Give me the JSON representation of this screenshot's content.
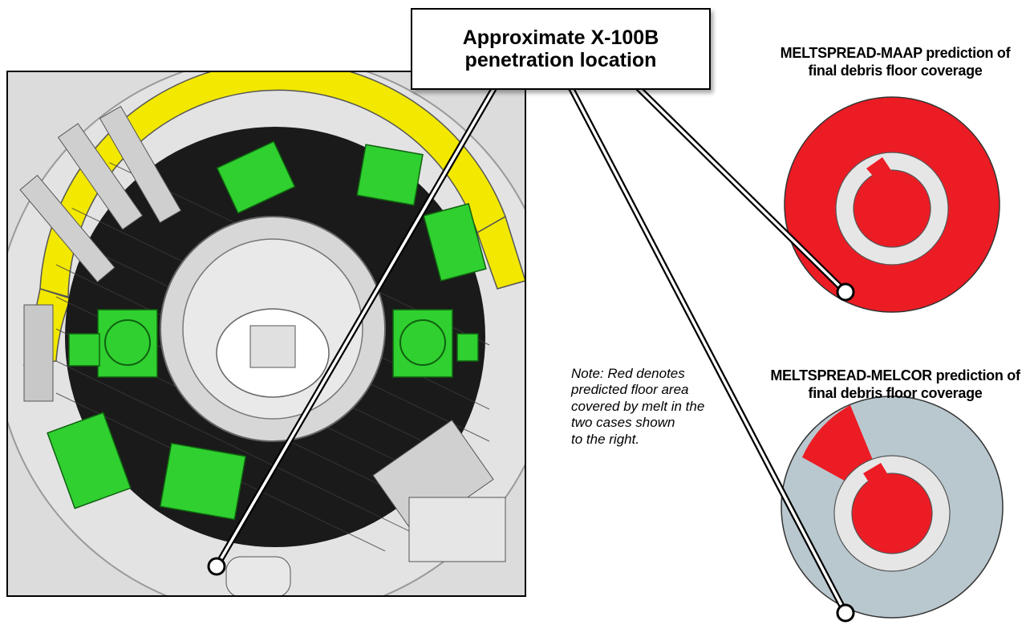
{
  "callout": {
    "line1": "Approximate X-100B",
    "line2": "penetration location"
  },
  "maap_caption": {
    "line1": "MELTSPREAD-MAAP prediction of",
    "line2": "final debris floor coverage"
  },
  "melcor_caption": {
    "line1": "MELTSPREAD-MELCOR prediction of",
    "line2": "final debris floor coverage"
  },
  "note": {
    "line1": "Note: Red denotes",
    "line2": "predicted floor area",
    "line3": "covered by melt in the",
    "line4": "two cases shown",
    "line5": "to the right."
  },
  "colors": {
    "melt_red": "#ec1c24",
    "floor_gray": "#b9c8cf",
    "pedestal_gray": "#e6e6e6",
    "equipment_green": "#2fd02f",
    "shell_yellow": "#f2e800",
    "grating_black": "#141414"
  },
  "maap_coverage": "full floor",
  "melcor_coverage": "partial floor"
}
